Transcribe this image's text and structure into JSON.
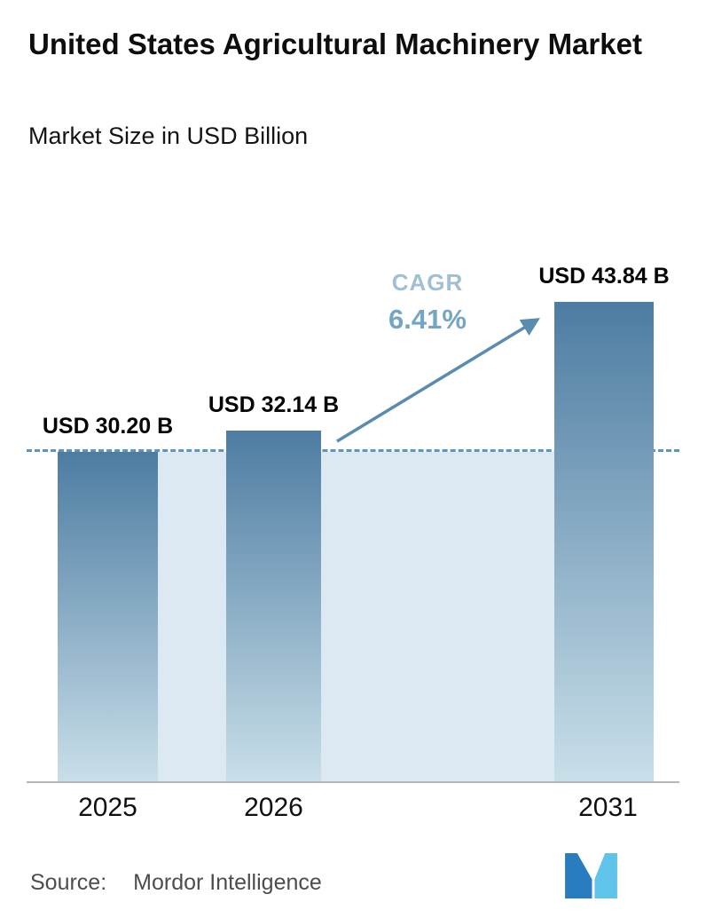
{
  "header": {
    "title": "United States Agricultural Machinery Market",
    "subtitle": "Market Size in USD Billion"
  },
  "chart_data": {
    "type": "bar",
    "title": "United States Agricultural Machinery Market",
    "subtitle": "Market Size in USD Billion",
    "unit": "USD Billion",
    "categories": [
      "2025",
      "2026",
      "2031"
    ],
    "values": [
      30.2,
      32.14,
      43.84
    ],
    "value_labels": [
      "USD 30.20 B",
      "USD 32.14 B",
      "USD 43.84 B"
    ],
    "cagr": {
      "label": "CAGR",
      "value": "6.41%"
    },
    "reference_line_value": 30.2,
    "layout": {
      "grid": false,
      "legend": false,
      "reference_line": "dashed",
      "ylim": [
        0,
        45
      ]
    },
    "colors": {
      "bar_top": "#4d7ca2",
      "bar_bottom": "#c9dfe9",
      "band": "#dce9f2",
      "dash": "#5f95ba",
      "arrow": "#5b8cb0",
      "cagr_label": "#9fc0d4",
      "cagr_value": "#74a5c4"
    }
  },
  "footer": {
    "source_label": "Source:",
    "source_name": "Mordor Intelligence",
    "logo_name": "mordor-intelligence-logo",
    "logo_dark": "#2a7cc1",
    "logo_light": "#5fc3ea"
  }
}
